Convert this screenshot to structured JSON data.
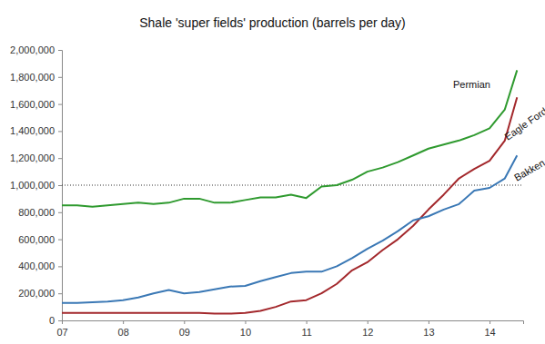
{
  "chart_data": {
    "type": "line",
    "title": "Shale 'super fields' production (barrels per day)",
    "x": [
      2007.0,
      2007.25,
      2007.5,
      2007.75,
      2008.0,
      2008.25,
      2008.5,
      2008.75,
      2009.0,
      2009.25,
      2009.5,
      2009.75,
      2010.0,
      2010.25,
      2010.5,
      2010.75,
      2011.0,
      2011.25,
      2011.5,
      2011.75,
      2012.0,
      2012.25,
      2012.5,
      2012.75,
      2013.0,
      2013.25,
      2013.5,
      2013.75,
      2014.0,
      2014.25,
      2014.45
    ],
    "series": [
      {
        "name": "Permian",
        "color": "#2f9a2f",
        "values": [
          850000,
          850000,
          840000,
          850000,
          860000,
          870000,
          860000,
          870000,
          900000,
          900000,
          870000,
          870000,
          890000,
          910000,
          910000,
          930000,
          905000,
          990000,
          1000000,
          1040000,
          1100000,
          1130000,
          1170000,
          1220000,
          1270000,
          1300000,
          1330000,
          1370000,
          1420000,
          1560000,
          1850000
        ]
      },
      {
        "name": "Eagle Ford",
        "color": "#a3282c",
        "values": [
          55000,
          55000,
          55000,
          55000,
          55000,
          55000,
          55000,
          55000,
          55000,
          55000,
          50000,
          50000,
          55000,
          70000,
          100000,
          140000,
          150000,
          200000,
          270000,
          370000,
          430000,
          520000,
          600000,
          700000,
          820000,
          930000,
          1050000,
          1120000,
          1180000,
          1330000,
          1650000
        ]
      },
      {
        "name": "Bakken",
        "color": "#3a78b5",
        "values": [
          130000,
          130000,
          135000,
          140000,
          150000,
          170000,
          200000,
          225000,
          200000,
          210000,
          230000,
          250000,
          255000,
          290000,
          320000,
          350000,
          360000,
          360000,
          400000,
          460000,
          530000,
          590000,
          660000,
          740000,
          770000,
          820000,
          860000,
          960000,
          980000,
          1050000,
          1220000
        ]
      }
    ],
    "xlim": [
      2007,
      2014.55
    ],
    "xticks": [
      {
        "value": 2007,
        "label": "07"
      },
      {
        "value": 2008,
        "label": "08"
      },
      {
        "value": 2009,
        "label": "09"
      },
      {
        "value": 2010,
        "label": "10"
      },
      {
        "value": 2011,
        "label": "11"
      },
      {
        "value": 2012,
        "label": "12"
      },
      {
        "value": 2013,
        "label": "13"
      },
      {
        "value": 2014,
        "label": "14"
      }
    ],
    "ylim": [
      0,
      2000000
    ],
    "yticks": [
      0,
      {
        "value": 200000,
        "label": "200,000"
      },
      {
        "value": 400000,
        "label": "400,000"
      },
      {
        "value": 600000,
        "label": "600,000"
      },
      {
        "value": 800000,
        "label": "800,000"
      },
      {
        "value": 1000000,
        "label": "1,000,000"
      },
      {
        "value": 1200000,
        "label": "1,200,000"
      },
      {
        "value": 1400000,
        "label": "1,400,000"
      },
      {
        "value": 1600000,
        "label": "1,600,000"
      },
      {
        "value": 1800000,
        "label": "1,800,000"
      },
      {
        "value": 2000000,
        "label": "2,000,000"
      }
    ],
    "hline": 1000000,
    "grid": false
  }
}
